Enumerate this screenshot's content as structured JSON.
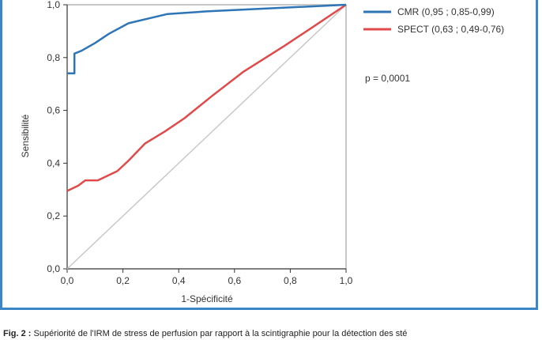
{
  "chart_data": {
    "type": "line",
    "title": "",
    "xlabel": "1-Spécificité",
    "ylabel": "Sensibilité",
    "xlim": [
      0,
      1
    ],
    "ylim": [
      0,
      1
    ],
    "x_ticks": [
      "0,0",
      "0,2",
      "0,4",
      "0,6",
      "0,8",
      "1,0"
    ],
    "y_ticks": [
      "0,0",
      "0,2",
      "0,4",
      "0,6",
      "0,8",
      "1,0"
    ],
    "grid": false,
    "legend_position": "top-right",
    "annotation": "p = 0,0001",
    "series": [
      {
        "name": "CMR (0,95 ; 0,85-0,99)",
        "color": "#2e75b6",
        "points": [
          [
            0,
            0.74
          ],
          [
            0.026,
            0.74
          ],
          [
            0.026,
            0.815
          ],
          [
            0.05,
            0.825
          ],
          [
            0.1,
            0.855
          ],
          [
            0.15,
            0.89
          ],
          [
            0.22,
            0.93
          ],
          [
            0.3,
            0.95
          ],
          [
            0.36,
            0.965
          ],
          [
            0.5,
            0.975
          ],
          [
            0.7,
            0.985
          ],
          [
            1.0,
            1.0
          ]
        ]
      },
      {
        "name": "SPECT (0,63 ; 0,49-0,76)",
        "color": "#e04a4a",
        "points": [
          [
            0,
            0.295
          ],
          [
            0.04,
            0.315
          ],
          [
            0.065,
            0.335
          ],
          [
            0.11,
            0.335
          ],
          [
            0.18,
            0.37
          ],
          [
            0.22,
            0.41
          ],
          [
            0.28,
            0.475
          ],
          [
            0.35,
            0.52
          ],
          [
            0.42,
            0.57
          ],
          [
            0.52,
            0.655
          ],
          [
            0.63,
            0.745
          ],
          [
            0.78,
            0.845
          ],
          [
            0.88,
            0.915
          ],
          [
            1.0,
            1.0
          ]
        ]
      },
      {
        "name": "",
        "color": "#c8c8c8",
        "points": [
          [
            0,
            0
          ],
          [
            1,
            1
          ]
        ]
      }
    ]
  },
  "caption": {
    "label": "Fig. 2 :",
    "text": " Supériorité de l'IRM de stress de perfusion par rapport à la scintigraphie pour la détection des sté"
  }
}
